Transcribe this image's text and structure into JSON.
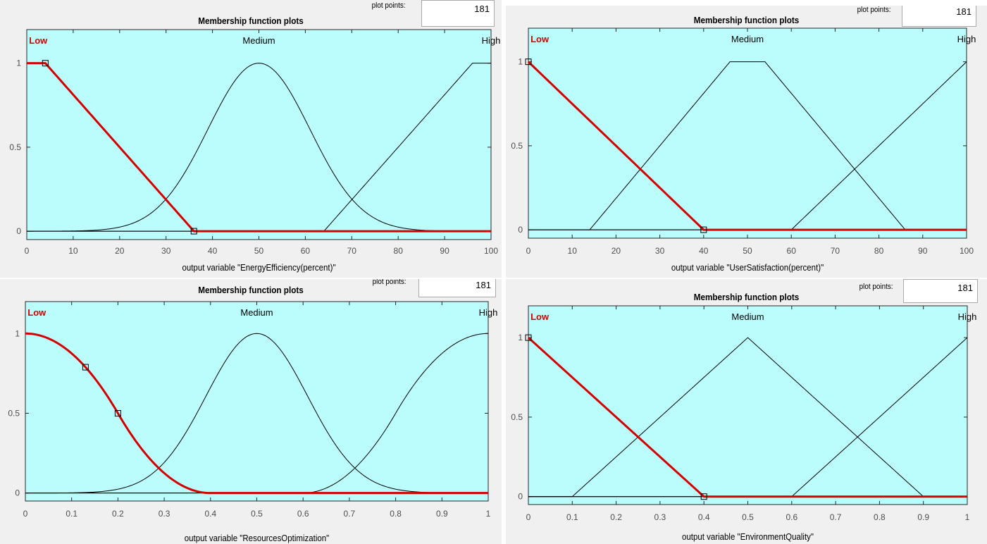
{
  "window": {
    "panel_title": "Membership function plots",
    "plot_points_label": "plot points:",
    "plot_points_value": "181"
  },
  "colors": {
    "plot_bg": "#bbfdfd",
    "selected": "#d40000",
    "curve": "#000000",
    "panel_bg": "#f0f0f0"
  },
  "chart_data": [
    {
      "type": "line",
      "title": "Membership function plots",
      "xlabel": "output variable \"EnergyEfficiency(percent)\"",
      "xlim": [
        0,
        100
      ],
      "ylim": [
        -0.05,
        1.2
      ],
      "xticks": [
        0,
        10,
        20,
        30,
        40,
        50,
        60,
        70,
        80,
        90,
        100
      ],
      "yticks": [
        0,
        0.5,
        1
      ],
      "selected_series": "Low",
      "series": [
        {
          "name": "Low",
          "shape": "trapmf",
          "params": [
            -40,
            -4,
            4,
            36
          ],
          "label_x": 0.5
        },
        {
          "name": "Medium",
          "shape": "gaussmf",
          "params": [
            11,
            50
          ],
          "label_x": 50
        },
        {
          "name": "High",
          "shape": "trapmf",
          "params": [
            64,
            96,
            104,
            136
          ],
          "label_x": 100
        }
      ]
    },
    {
      "type": "line",
      "title": "Membership function plots",
      "xlabel": "output variable \"UserSatisfaction(percent)\"",
      "xlim": [
        0,
        100
      ],
      "ylim": [
        -0.05,
        1.2
      ],
      "xticks": [
        0,
        10,
        20,
        30,
        40,
        50,
        60,
        70,
        80,
        90,
        100
      ],
      "yticks": [
        0,
        0.5,
        1
      ],
      "selected_series": "Low",
      "series": [
        {
          "name": "Low",
          "shape": "trimf",
          "params": [
            -40,
            0,
            40
          ],
          "label_x": 0.5
        },
        {
          "name": "Medium",
          "shape": "trapmf",
          "params": [
            14,
            46,
            54,
            86
          ],
          "label_x": 50
        },
        {
          "name": "High",
          "shape": "trimf",
          "params": [
            60,
            100,
            140
          ],
          "label_x": 100
        }
      ]
    },
    {
      "type": "line",
      "title": "Membership function plots",
      "xlabel": "output variable \"ResourcesOptimization\"",
      "xlim": [
        0,
        1
      ],
      "ylim": [
        -0.05,
        1.2
      ],
      "xticks": [
        0,
        0.1,
        0.2,
        0.3,
        0.4,
        0.5,
        0.6,
        0.7,
        0.8,
        0.9,
        1
      ],
      "yticks": [
        0,
        0.5,
        1
      ],
      "selected_series": "Low",
      "series": [
        {
          "name": "Low",
          "shape": "zmf",
          "params": [
            0.0,
            0.4
          ],
          "label_x": 0.005,
          "markers": [
            0.13,
            0.2
          ]
        },
        {
          "name": "Medium",
          "shape": "gaussmf",
          "params": [
            0.11,
            0.5
          ],
          "label_x": 0.5
        },
        {
          "name": "High",
          "shape": "smf",
          "params": [
            0.6,
            1.0
          ],
          "label_x": 1
        }
      ]
    },
    {
      "type": "line",
      "title": "Membership function plots",
      "xlabel": "output variable \"EnvironmentQuality\"",
      "xlim": [
        0,
        1
      ],
      "ylim": [
        -0.05,
        1.2
      ],
      "xticks": [
        0,
        0.1,
        0.2,
        0.3,
        0.4,
        0.5,
        0.6,
        0.7,
        0.8,
        0.9,
        1
      ],
      "yticks": [
        0,
        0.5,
        1
      ],
      "selected_series": "Low",
      "series": [
        {
          "name": "Low",
          "shape": "trimf",
          "params": [
            -0.4,
            0,
            0.4
          ],
          "label_x": 0.005
        },
        {
          "name": "Medium",
          "shape": "trimf",
          "params": [
            0.1,
            0.5,
            0.9
          ],
          "label_x": 0.5
        },
        {
          "name": "High",
          "shape": "trimf",
          "params": [
            0.6,
            1,
            1.4
          ],
          "label_x": 1
        }
      ]
    }
  ]
}
